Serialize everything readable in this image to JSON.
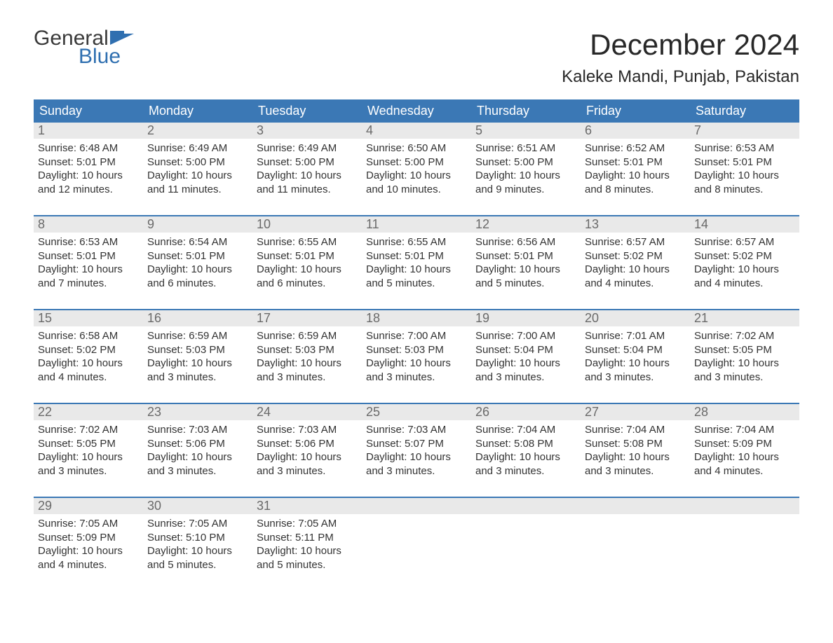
{
  "brand": {
    "word1": "General",
    "word2": "Blue",
    "flag_color": "#2f6fb0",
    "text_gray": "#3a3a3a"
  },
  "title": "December 2024",
  "location": "Kaleke Mandi, Punjab, Pakistan",
  "colors": {
    "header_bg": "#3b78b5",
    "header_text": "#ffffff",
    "daynum_bg": "#e9e9e9",
    "daynum_text": "#6a6a6a",
    "body_text": "#333333",
    "rule": "#3b78b5",
    "page_bg": "#ffffff"
  },
  "typography": {
    "title_fontsize": 42,
    "location_fontsize": 24,
    "header_fontsize": 18,
    "body_fontsize": 15
  },
  "day_names": [
    "Sunday",
    "Monday",
    "Tuesday",
    "Wednesday",
    "Thursday",
    "Friday",
    "Saturday"
  ],
  "weeks": [
    [
      {
        "n": "1",
        "sunrise": "Sunrise: 6:48 AM",
        "sunset": "Sunset: 5:01 PM",
        "daylight": "Daylight: 10 hours and 12 minutes."
      },
      {
        "n": "2",
        "sunrise": "Sunrise: 6:49 AM",
        "sunset": "Sunset: 5:00 PM",
        "daylight": "Daylight: 10 hours and 11 minutes."
      },
      {
        "n": "3",
        "sunrise": "Sunrise: 6:49 AM",
        "sunset": "Sunset: 5:00 PM",
        "daylight": "Daylight: 10 hours and 11 minutes."
      },
      {
        "n": "4",
        "sunrise": "Sunrise: 6:50 AM",
        "sunset": "Sunset: 5:00 PM",
        "daylight": "Daylight: 10 hours and 10 minutes."
      },
      {
        "n": "5",
        "sunrise": "Sunrise: 6:51 AM",
        "sunset": "Sunset: 5:00 PM",
        "daylight": "Daylight: 10 hours and 9 minutes."
      },
      {
        "n": "6",
        "sunrise": "Sunrise: 6:52 AM",
        "sunset": "Sunset: 5:01 PM",
        "daylight": "Daylight: 10 hours and 8 minutes."
      },
      {
        "n": "7",
        "sunrise": "Sunrise: 6:53 AM",
        "sunset": "Sunset: 5:01 PM",
        "daylight": "Daylight: 10 hours and 8 minutes."
      }
    ],
    [
      {
        "n": "8",
        "sunrise": "Sunrise: 6:53 AM",
        "sunset": "Sunset: 5:01 PM",
        "daylight": "Daylight: 10 hours and 7 minutes."
      },
      {
        "n": "9",
        "sunrise": "Sunrise: 6:54 AM",
        "sunset": "Sunset: 5:01 PM",
        "daylight": "Daylight: 10 hours and 6 minutes."
      },
      {
        "n": "10",
        "sunrise": "Sunrise: 6:55 AM",
        "sunset": "Sunset: 5:01 PM",
        "daylight": "Daylight: 10 hours and 6 minutes."
      },
      {
        "n": "11",
        "sunrise": "Sunrise: 6:55 AM",
        "sunset": "Sunset: 5:01 PM",
        "daylight": "Daylight: 10 hours and 5 minutes."
      },
      {
        "n": "12",
        "sunrise": "Sunrise: 6:56 AM",
        "sunset": "Sunset: 5:01 PM",
        "daylight": "Daylight: 10 hours and 5 minutes."
      },
      {
        "n": "13",
        "sunrise": "Sunrise: 6:57 AM",
        "sunset": "Sunset: 5:02 PM",
        "daylight": "Daylight: 10 hours and 4 minutes."
      },
      {
        "n": "14",
        "sunrise": "Sunrise: 6:57 AM",
        "sunset": "Sunset: 5:02 PM",
        "daylight": "Daylight: 10 hours and 4 minutes."
      }
    ],
    [
      {
        "n": "15",
        "sunrise": "Sunrise: 6:58 AM",
        "sunset": "Sunset: 5:02 PM",
        "daylight": "Daylight: 10 hours and 4 minutes."
      },
      {
        "n": "16",
        "sunrise": "Sunrise: 6:59 AM",
        "sunset": "Sunset: 5:03 PM",
        "daylight": "Daylight: 10 hours and 3 minutes."
      },
      {
        "n": "17",
        "sunrise": "Sunrise: 6:59 AM",
        "sunset": "Sunset: 5:03 PM",
        "daylight": "Daylight: 10 hours and 3 minutes."
      },
      {
        "n": "18",
        "sunrise": "Sunrise: 7:00 AM",
        "sunset": "Sunset: 5:03 PM",
        "daylight": "Daylight: 10 hours and 3 minutes."
      },
      {
        "n": "19",
        "sunrise": "Sunrise: 7:00 AM",
        "sunset": "Sunset: 5:04 PM",
        "daylight": "Daylight: 10 hours and 3 minutes."
      },
      {
        "n": "20",
        "sunrise": "Sunrise: 7:01 AM",
        "sunset": "Sunset: 5:04 PM",
        "daylight": "Daylight: 10 hours and 3 minutes."
      },
      {
        "n": "21",
        "sunrise": "Sunrise: 7:02 AM",
        "sunset": "Sunset: 5:05 PM",
        "daylight": "Daylight: 10 hours and 3 minutes."
      }
    ],
    [
      {
        "n": "22",
        "sunrise": "Sunrise: 7:02 AM",
        "sunset": "Sunset: 5:05 PM",
        "daylight": "Daylight: 10 hours and 3 minutes."
      },
      {
        "n": "23",
        "sunrise": "Sunrise: 7:03 AM",
        "sunset": "Sunset: 5:06 PM",
        "daylight": "Daylight: 10 hours and 3 minutes."
      },
      {
        "n": "24",
        "sunrise": "Sunrise: 7:03 AM",
        "sunset": "Sunset: 5:06 PM",
        "daylight": "Daylight: 10 hours and 3 minutes."
      },
      {
        "n": "25",
        "sunrise": "Sunrise: 7:03 AM",
        "sunset": "Sunset: 5:07 PM",
        "daylight": "Daylight: 10 hours and 3 minutes."
      },
      {
        "n": "26",
        "sunrise": "Sunrise: 7:04 AM",
        "sunset": "Sunset: 5:08 PM",
        "daylight": "Daylight: 10 hours and 3 minutes."
      },
      {
        "n": "27",
        "sunrise": "Sunrise: 7:04 AM",
        "sunset": "Sunset: 5:08 PM",
        "daylight": "Daylight: 10 hours and 3 minutes."
      },
      {
        "n": "28",
        "sunrise": "Sunrise: 7:04 AM",
        "sunset": "Sunset: 5:09 PM",
        "daylight": "Daylight: 10 hours and 4 minutes."
      }
    ],
    [
      {
        "n": "29",
        "sunrise": "Sunrise: 7:05 AM",
        "sunset": "Sunset: 5:09 PM",
        "daylight": "Daylight: 10 hours and 4 minutes."
      },
      {
        "n": "30",
        "sunrise": "Sunrise: 7:05 AM",
        "sunset": "Sunset: 5:10 PM",
        "daylight": "Daylight: 10 hours and 5 minutes."
      },
      {
        "n": "31",
        "sunrise": "Sunrise: 7:05 AM",
        "sunset": "Sunset: 5:11 PM",
        "daylight": "Daylight: 10 hours and 5 minutes."
      },
      null,
      null,
      null,
      null
    ]
  ]
}
